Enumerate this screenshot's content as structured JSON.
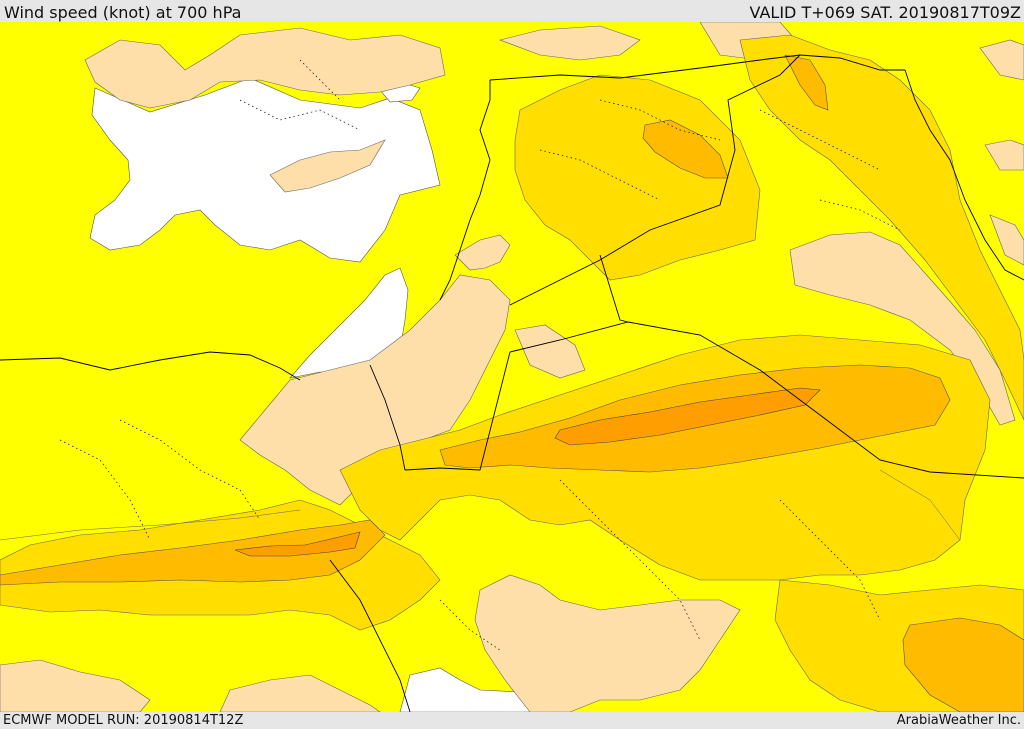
{
  "header": {
    "title": "Wind speed (knot) at 700 hPa",
    "valid": "VALID T+069 SAT. 20190817T09Z"
  },
  "footer": {
    "model_run": "ECMWF MODEL RUN: 20190814T12Z",
    "credit": "ArabiaWeather Inc."
  },
  "colors": {
    "background": "#ffff00",
    "calm": "#ffffff",
    "light": "#fedfaa",
    "moderate": "#ffde00",
    "strong": "#ffbb00",
    "strongest": "#ff9e00",
    "border": "#000000"
  }
}
